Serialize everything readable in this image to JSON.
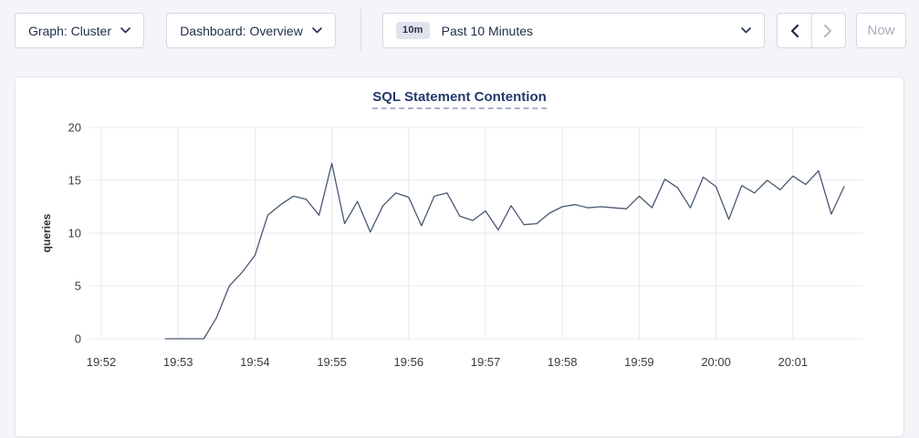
{
  "toolbar": {
    "graph_dropdown_label": "Graph: Cluster",
    "dashboard_dropdown_label": "Dashboard: Overview",
    "time_range": {
      "badge": "10m",
      "label": "Past 10 Minutes"
    },
    "now_label": "Now",
    "icons": {
      "graph_dropdown": "chevron-down",
      "dashboard_dropdown": "chevron-down",
      "time_select": "chevron-down",
      "prev": "chevron-left",
      "next": "chevron-right"
    }
  },
  "colors": {
    "page_bg": "#f4f5f9",
    "card_bg": "#ffffff",
    "line": "#475872",
    "grid": "#e8e8ec",
    "title": "#253a6d",
    "enabled_icon": "#1f2a46",
    "disabled_icon": "#b9bec9"
  },
  "chart_data": {
    "type": "line",
    "title": "SQL Statement Contention",
    "xlabel": "",
    "ylabel": "queries",
    "ylim": [
      0,
      20
    ],
    "yticks": [
      0,
      5,
      10,
      15,
      20
    ],
    "xticks": [
      "19:52",
      "19:53",
      "19:54",
      "19:55",
      "19:56",
      "19:57",
      "19:58",
      "19:59",
      "20:00",
      "20:01"
    ],
    "grid": true,
    "legend_position": "none",
    "series": [
      {
        "name": "queries",
        "color": "#475872",
        "points": [
          [
            "19:52:50",
            0
          ],
          [
            "19:53:00",
            0
          ],
          [
            "19:53:10",
            0
          ],
          [
            "19:53:20",
            0
          ],
          [
            "19:53:30",
            2.0
          ],
          [
            "19:53:40",
            5.0
          ],
          [
            "19:53:50",
            6.3
          ],
          [
            "19:54:00",
            7.9
          ],
          [
            "19:54:10",
            11.7
          ],
          [
            "19:54:20",
            12.7
          ],
          [
            "19:54:30",
            13.5
          ],
          [
            "19:54:40",
            13.2
          ],
          [
            "19:54:50",
            11.7
          ],
          [
            "19:55:00",
            16.6
          ],
          [
            "19:55:10",
            10.9
          ],
          [
            "19:55:20",
            13.0
          ],
          [
            "19:55:30",
            10.1
          ],
          [
            "19:55:40",
            12.6
          ],
          [
            "19:55:50",
            13.8
          ],
          [
            "19:56:00",
            13.4
          ],
          [
            "19:56:10",
            10.7
          ],
          [
            "19:56:20",
            13.5
          ],
          [
            "19:56:30",
            13.8
          ],
          [
            "19:56:40",
            11.6
          ],
          [
            "19:56:50",
            11.2
          ],
          [
            "19:57:00",
            12.1
          ],
          [
            "19:57:10",
            10.3
          ],
          [
            "19:57:20",
            12.6
          ],
          [
            "19:57:30",
            10.8
          ],
          [
            "19:57:40",
            10.9
          ],
          [
            "19:57:50",
            11.9
          ],
          [
            "19:58:00",
            12.5
          ],
          [
            "19:58:10",
            12.7
          ],
          [
            "19:58:20",
            12.4
          ],
          [
            "19:58:30",
            12.5
          ],
          [
            "19:58:40",
            12.4
          ],
          [
            "19:58:50",
            12.3
          ],
          [
            "19:59:00",
            13.5
          ],
          [
            "19:59:10",
            12.4
          ],
          [
            "19:59:20",
            15.1
          ],
          [
            "19:59:30",
            14.3
          ],
          [
            "19:59:40",
            12.4
          ],
          [
            "19:59:50",
            15.3
          ],
          [
            "20:00:00",
            14.4
          ],
          [
            "20:00:10",
            11.3
          ],
          [
            "20:00:20",
            14.5
          ],
          [
            "20:00:30",
            13.8
          ],
          [
            "20:00:40",
            15.0
          ],
          [
            "20:00:50",
            14.1
          ],
          [
            "20:01:00",
            15.4
          ],
          [
            "20:01:10",
            14.6
          ],
          [
            "20:01:20",
            15.9
          ],
          [
            "20:01:30",
            11.8
          ],
          [
            "20:01:40",
            14.4
          ]
        ]
      }
    ]
  }
}
